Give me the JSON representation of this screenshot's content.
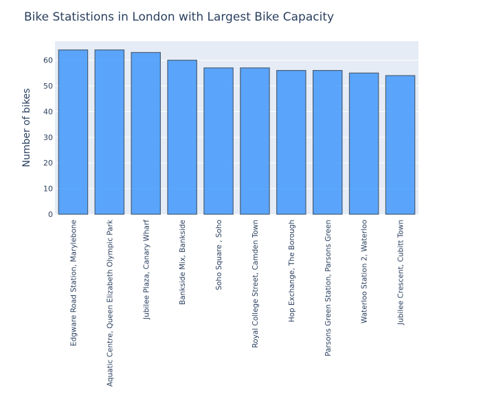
{
  "chart_data": {
    "type": "bar",
    "title": "Bike Statistions in London with Largest Bike Capacity",
    "xlabel": "",
    "ylabel": "Number of bikes",
    "categories": [
      "Edgware Road Station, Marylebone",
      "Aquatic Centre, Queen Elizabeth Olympic Park",
      "Jubilee Plaza, Canary Wharf",
      "Bankside Mix, Bankside",
      "Soho Square , Soho",
      "Royal College Street, Camden Town",
      "Hop Exchange, The Borough",
      "Parsons Green Station, Parsons Green",
      "Waterloo Station 2, Waterloo",
      "Jubilee Crescent, Cubitt Town"
    ],
    "values": [
      64,
      64,
      63,
      60,
      57,
      57,
      56,
      56,
      55,
      54
    ],
    "yticks": [
      "0",
      "10",
      "20",
      "30",
      "40",
      "50",
      "60"
    ],
    "ylim": [
      0,
      67.4
    ],
    "grid": true,
    "legend": "none",
    "colors": {
      "bar_fill": "#4a9dfc",
      "bar_stroke": "#4a5d73",
      "plot_bg": "#e5ecf6",
      "grid": "#ffffff",
      "text": "#2a3f5f"
    }
  }
}
